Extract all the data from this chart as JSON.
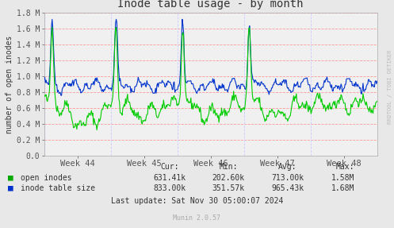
{
  "title": "Inode table usage - by month",
  "ylabel": "number of open inodes",
  "xlabel_ticks": [
    "Week 44",
    "Week 45",
    "Week 46",
    "Week 47",
    "Week 48"
  ],
  "ylim": [
    0.0,
    1800000
  ],
  "yticks": [
    0.0,
    200000,
    400000,
    600000,
    800000,
    1000000,
    1200000,
    1400000,
    1600000,
    1800000
  ],
  "ytick_labels": [
    "0.0",
    "0.2 M",
    "0.4 M",
    "0.6 M",
    "0.8 M",
    "1.0 M",
    "1.2 M",
    "1.4 M",
    "1.6 M",
    "1.8 M"
  ],
  "bg_color": "#e8e8e8",
  "plot_bg_color": "#f0f0f0",
  "grid_color_h": "#ff9999",
  "grid_color_v": "#ccccff",
  "green_color": "#00cc00",
  "blue_color": "#0033cc",
  "title_color": "#333333",
  "label_color": "#333333",
  "tick_color": "#555555",
  "legend_green_color": "#00aa00",
  "legend_blue_color": "#0033cc",
  "watermark": "RRDTOOL / TOBI OETIKER",
  "footer": "Munin 2.0.57",
  "cur_label": "Cur:",
  "min_label": "Min:",
  "avg_label": "Avg:",
  "max_label": "Max:",
  "row1_name": "open inodes",
  "row1_cur": "631.41k",
  "row1_min": "202.60k",
  "row1_avg": "713.00k",
  "row1_max": "1.58M",
  "row2_name": "inode table size",
  "row2_cur": "833.00k",
  "row2_min": "351.57k",
  "row2_avg": "965.43k",
  "row2_max": "1.68M",
  "last_update": "Last update: Sat Nov 30 05:00:07 2024",
  "n_points": 500
}
